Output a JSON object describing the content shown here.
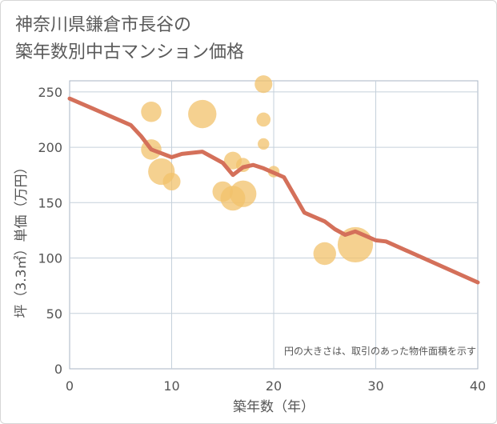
{
  "title_lines": [
    "神奈川県鎌倉市長谷の",
    "築年数別中古マンション価格"
  ],
  "chart_data": {
    "type": "scatter",
    "title": "神奈川県鎌倉市長谷の築年数別中古マンション価格",
    "xlabel": "築年数（年）",
    "ylabel": "坪（3.3㎡）単価（万円）",
    "xlim": [
      0,
      40
    ],
    "ylim": [
      0,
      260
    ],
    "xticks": [
      0,
      10,
      20,
      30,
      40
    ],
    "yticks": [
      0,
      50,
      100,
      150,
      200,
      250
    ],
    "grid": true,
    "note": "円の大きさは、取引のあった物件面積を示す",
    "bubble_color": "#f2c26b",
    "line_color": "#d4705a",
    "bubbles": [
      {
        "x": 8,
        "y": 232,
        "size": 3
      },
      {
        "x": 8,
        "y": 198,
        "size": 3
      },
      {
        "x": 9,
        "y": 178,
        "size": 6
      },
      {
        "x": 10,
        "y": 169,
        "size": 2
      },
      {
        "x": 13,
        "y": 230,
        "size": 7
      },
      {
        "x": 15,
        "y": 160,
        "size": 3
      },
      {
        "x": 16,
        "y": 188,
        "size": 2
      },
      {
        "x": 16,
        "y": 154,
        "size": 5
      },
      {
        "x": 17,
        "y": 158,
        "size": 6
      },
      {
        "x": 17,
        "y": 184,
        "size": 1
      },
      {
        "x": 19,
        "y": 257,
        "size": 2
      },
      {
        "x": 19,
        "y": 225,
        "size": 1
      },
      {
        "x": 19,
        "y": 203,
        "size": 0.5
      },
      {
        "x": 20,
        "y": 178,
        "size": 0.5
      },
      {
        "x": 25,
        "y": 104,
        "size": 4
      },
      {
        "x": 28,
        "y": 112,
        "size": 12
      }
    ],
    "trend": {
      "x": [
        0,
        2,
        4,
        6,
        7,
        8,
        10,
        11,
        13,
        15,
        16,
        17,
        18,
        19,
        21,
        23,
        25,
        26,
        27,
        28,
        29,
        30,
        31,
        40
      ],
      "y": [
        244,
        236,
        228,
        220,
        210,
        198,
        191,
        194,
        196,
        186,
        175,
        182,
        184,
        181,
        173,
        141,
        133,
        126,
        121,
        124,
        120,
        116,
        115,
        78
      ]
    }
  }
}
